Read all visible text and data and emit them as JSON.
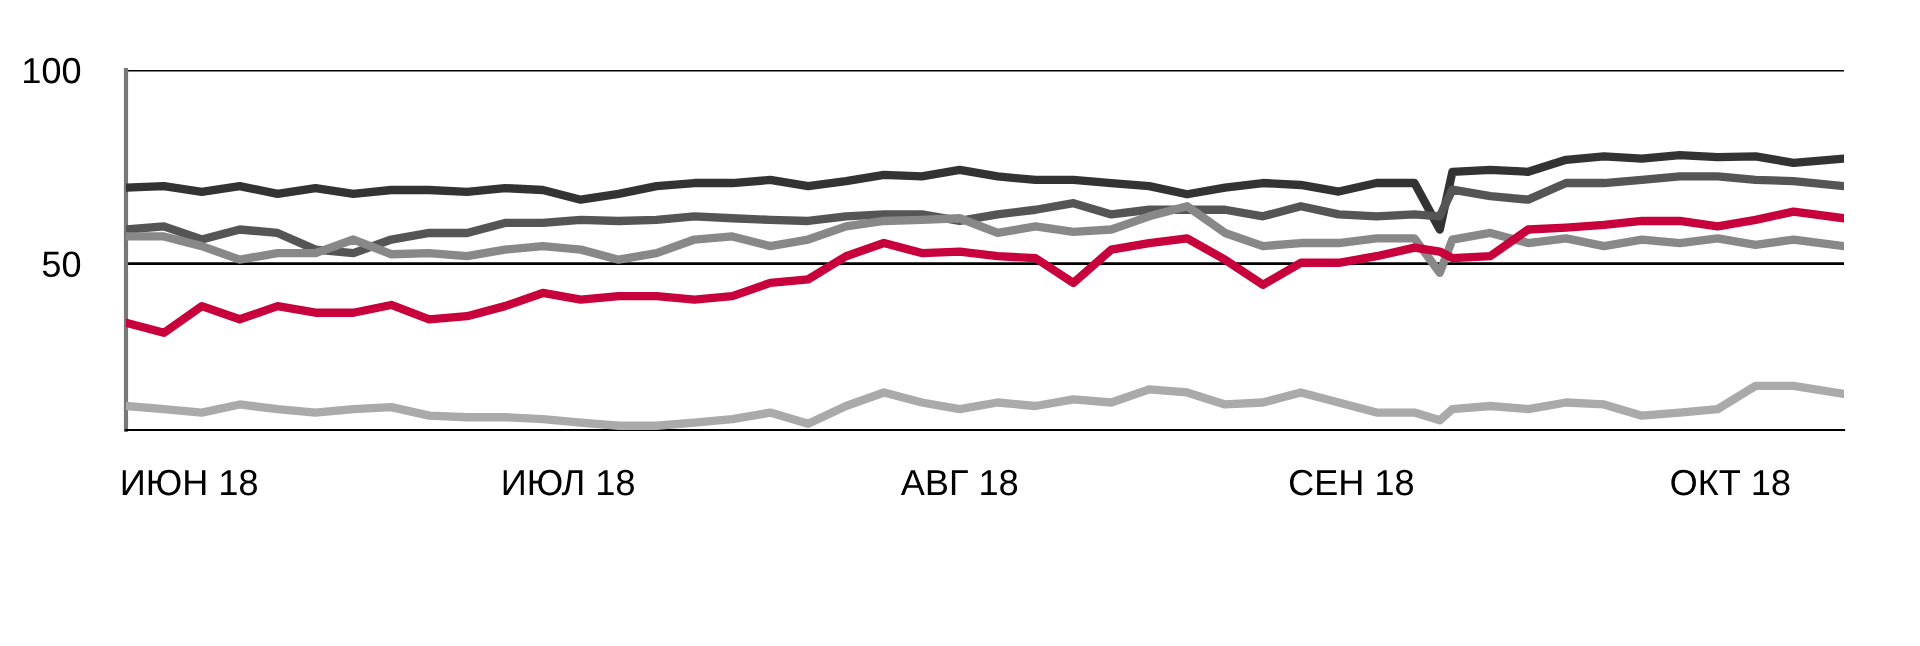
{
  "chart_data": {
    "type": "line",
    "x": [
      "2018-05-27",
      "2018-05-30",
      "2018-06-02",
      "2018-06-05",
      "2018-06-08",
      "2018-06-11",
      "2018-06-14",
      "2018-06-17",
      "2018-06-20",
      "2018-06-23",
      "2018-06-26",
      "2018-06-29",
      "2018-07-02",
      "2018-07-05",
      "2018-07-08",
      "2018-07-11",
      "2018-07-14",
      "2018-07-17",
      "2018-07-20",
      "2018-07-23",
      "2018-07-26",
      "2018-07-29",
      "2018-08-01",
      "2018-08-04",
      "2018-08-07",
      "2018-08-10",
      "2018-08-13",
      "2018-08-16",
      "2018-08-19",
      "2018-08-22",
      "2018-08-25",
      "2018-08-28",
      "2018-08-31",
      "2018-09-03",
      "2018-09-06",
      "2018-09-08",
      "2018-09-09",
      "2018-09-12",
      "2018-09-15",
      "2018-09-18",
      "2018-09-21",
      "2018-09-24",
      "2018-09-27",
      "2018-09-30",
      "2018-10-03",
      "2018-10-06",
      "2018-10-10"
    ],
    "series": [
      {
        "color": "#333333",
        "values": [
          69.6,
          70,
          68.5,
          70,
          68,
          69.5,
          68,
          69,
          69,
          68.5,
          69.5,
          69,
          66.5,
          68,
          70,
          70.8,
          70.8,
          71.6,
          70,
          71.3,
          72.9,
          72.5,
          74.2,
          72.5,
          71.6,
          71.6,
          70.8,
          70,
          67.9,
          69.6,
          70.8,
          70.3,
          68.6,
          70.8,
          70.8,
          58.8,
          73.7,
          74.2,
          73.7,
          76.8,
          77.7,
          77.1,
          78,
          77.5,
          77.7,
          76,
          77.1
        ]
      },
      {
        "color": "#555555",
        "values": [
          58.8,
          59.6,
          56.2,
          58.8,
          57.9,
          53.6,
          52.7,
          56.2,
          57.9,
          57.9,
          60.5,
          60.5,
          61.3,
          61,
          61.3,
          62.2,
          61.7,
          61.3,
          61,
          62.2,
          62.7,
          62.7,
          61,
          62.7,
          63.9,
          65.6,
          62.7,
          63.9,
          63.9,
          63.9,
          62.2,
          64.8,
          62.7,
          62.2,
          62.7,
          62.2,
          69.1,
          67.4,
          66.5,
          70.8,
          70.8,
          71.6,
          72.5,
          72.5,
          71.6,
          71.3,
          70
        ]
      },
      {
        "color": "#888888",
        "values": [
          57,
          57,
          54.5,
          51,
          52.7,
          52.7,
          56.2,
          52.4,
          52.7,
          51.9,
          53.6,
          54.5,
          53.6,
          51,
          52.7,
          56.2,
          57,
          54.5,
          56.2,
          59.6,
          61,
          61.3,
          61.7,
          57.9,
          59.6,
          58.2,
          58.8,
          62.2,
          64.8,
          57.9,
          54.5,
          55.3,
          55.3,
          56.5,
          56.5,
          47.6,
          56.2,
          57.9,
          55.3,
          56.5,
          54.5,
          56.2,
          55.3,
          56.5,
          54.8,
          56.2,
          54.5
        ]
      },
      {
        "color": "#c8003c",
        "values": [
          34.7,
          32.1,
          39,
          35.6,
          39,
          37.3,
          37.3,
          39.3,
          35.6,
          36.4,
          39,
          42.4,
          40.7,
          41.6,
          41.6,
          40.7,
          41.6,
          45,
          45.9,
          51.9,
          55.3,
          52.7,
          53.1,
          51.9,
          51.4,
          45,
          53.6,
          55.3,
          56.5,
          51,
          44.5,
          50.2,
          50.2,
          51.9,
          54.1,
          53.1,
          51.4,
          51.9,
          58.8,
          59.3,
          60,
          61,
          61,
          59.6,
          61.3,
          63.4,
          61.7
        ]
      },
      {
        "color": "#aaaaaa",
        "values": [
          13.2,
          12.4,
          11.5,
          13.6,
          12.4,
          11.5,
          12.4,
          12.9,
          10.7,
          10.3,
          10.3,
          9.8,
          8.9,
          8.1,
          8.1,
          8.9,
          9.8,
          11.5,
          8.6,
          13.2,
          16.7,
          14.1,
          12.4,
          14.1,
          13.2,
          14.9,
          14.1,
          17.5,
          16.7,
          13.6,
          14.1,
          16.7,
          14.1,
          11.5,
          11.5,
          9.5,
          12.4,
          13.2,
          12.4,
          14.1,
          13.6,
          10.7,
          11.5,
          12.4,
          18.4,
          18.4,
          16.3
        ]
      }
    ],
    "xlim": [
      "2018-05-27",
      "2018-10-10"
    ],
    "xticks": [
      {
        "value": "2018-06-01",
        "label": "ИЮН 18"
      },
      {
        "value": "2018-07-01",
        "label": "ИЮЛ 18"
      },
      {
        "value": "2018-08-01",
        "label": "АВГ 18"
      },
      {
        "value": "2018-09-01",
        "label": "СЕН 18"
      },
      {
        "value": "2018-10-01",
        "label": "ОКТ 18"
      }
    ],
    "ylim": [
      7,
      100
    ],
    "yticks": [
      50,
      100
    ],
    "grid": "y",
    "line_style": "solid",
    "marker": "none"
  }
}
